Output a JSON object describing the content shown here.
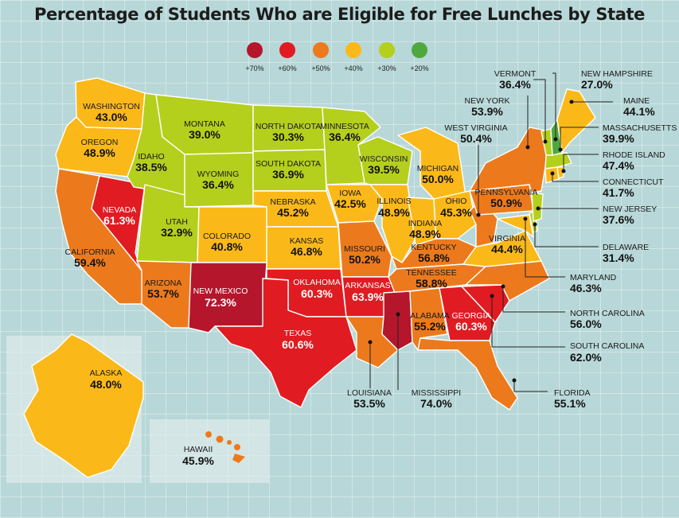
{
  "title": "Percentage of Students Who are Eligible for Free Lunches by State",
  "legend": [
    {
      "label": "+70%",
      "color": "#b5162c"
    },
    {
      "label": "+60%",
      "color": "#e11b22"
    },
    {
      "label": "+50%",
      "color": "#ec7a1c"
    },
    {
      "label": "+40%",
      "color": "#fbb919"
    },
    {
      "label": "+30%",
      "color": "#b5cf1d"
    },
    {
      "label": "+20%",
      "color": "#4fa83d"
    }
  ],
  "states": {
    "washington": {
      "name": "WASHINGTON",
      "value": "43.0%"
    },
    "oregon": {
      "name": "OREGON",
      "value": "48.9%"
    },
    "california": {
      "name": "CALIFORNIA",
      "value": "59.4%"
    },
    "nevada": {
      "name": "NEVADA",
      "value": "61.3%"
    },
    "idaho": {
      "name": "IDAHO",
      "value": "38.5%"
    },
    "montana": {
      "name": "MONTANA",
      "value": "39.0%"
    },
    "wyoming": {
      "name": "WYOMING",
      "value": "36.4%"
    },
    "utah": {
      "name": "UTAH",
      "value": "32.9%"
    },
    "arizona": {
      "name": "ARIZONA",
      "value": "53.7%"
    },
    "colorado": {
      "name": "COLORADO",
      "value": "40.8%"
    },
    "new_mexico": {
      "name": "NEW MEXICO",
      "value": "72.3%"
    },
    "north_dakota": {
      "name": "NORTH DAKOTA",
      "value": "30.3%"
    },
    "south_dakota": {
      "name": "SOUTH DAKOTA",
      "value": "36.9%"
    },
    "nebraska": {
      "name": "NEBRASKA",
      "value": "45.2%"
    },
    "kansas": {
      "name": "KANSAS",
      "value": "46.8%"
    },
    "oklahoma": {
      "name": "OKLAHOMA",
      "value": "60.3%"
    },
    "texas": {
      "name": "TEXAS",
      "value": "60.6%"
    },
    "minnesota": {
      "name": "MINNESOTA",
      "value": "36.4%"
    },
    "iowa": {
      "name": "IOWA",
      "value": "42.5%"
    },
    "missouri": {
      "name": "MISSOURI",
      "value": "50.2%"
    },
    "arkansas": {
      "name": "ARKANSAS",
      "value": "63.9%"
    },
    "louisiana": {
      "name": "LOUISIANA",
      "value": "53.5%"
    },
    "wisconsin": {
      "name": "WISCONSIN",
      "value": "39.5%"
    },
    "illinois": {
      "name": "ILLINOIS",
      "value": "48.9%"
    },
    "michigan": {
      "name": "MICHIGAN",
      "value": "50.0%"
    },
    "indiana": {
      "name": "INDIANA",
      "value": "48.9%"
    },
    "ohio": {
      "name": "OHIO",
      "value": "45.3%"
    },
    "kentucky": {
      "name": "KENTUCKY",
      "value": "56.8%"
    },
    "tennessee": {
      "name": "TENNESSEE",
      "value": "58.8%"
    },
    "mississippi": {
      "name": "MISSISSIPPI",
      "value": "74.0%"
    },
    "alabama": {
      "name": "ALABAMA",
      "value": "55.2%"
    },
    "georgia": {
      "name": "GEORGIA",
      "value": "60.3%"
    },
    "florida": {
      "name": "FLORIDA",
      "value": "55.1%"
    },
    "south_carolina": {
      "name": "SOUTH  CAROLINA",
      "value": "62.0%"
    },
    "north_carolina": {
      "name": "NORTH CAROLINA",
      "value": "56.0%"
    },
    "virginia": {
      "name": "VIRGINIA",
      "value": "44.4%"
    },
    "west_virginia": {
      "name": "WEST VIRGINIA",
      "value": "50.4%"
    },
    "pennsylvania": {
      "name": "PENNSYLVANIA",
      "value": "50.9%"
    },
    "new_york": {
      "name": "NEW YORK",
      "value": "53.9%"
    },
    "maryland": {
      "name": "MARYLAND",
      "value": "46.3%"
    },
    "delaware": {
      "name": "DELAWARE",
      "value": "31.4%"
    },
    "new_jersey": {
      "name": "NEW JERSEY",
      "value": "37.6%"
    },
    "connecticut": {
      "name": "CONNECTICUT",
      "value": "41.7%"
    },
    "rhode_island": {
      "name": "RHODE ISLAND",
      "value": "47.4%"
    },
    "massachusetts": {
      "name": "MASSACHUSETTS",
      "value": "39.9%"
    },
    "vermont": {
      "name": "VERMONT",
      "value": "36.4%"
    },
    "new_hampshire": {
      "name": "NEW HAMPSHIRE",
      "value": "27.0%"
    },
    "maine": {
      "name": "MAINE",
      "value": "44.1%"
    },
    "alaska": {
      "name": "ALASKA",
      "value": "48.0%"
    },
    "hawaii": {
      "name": "HAWAII",
      "value": "45.9%"
    }
  }
}
